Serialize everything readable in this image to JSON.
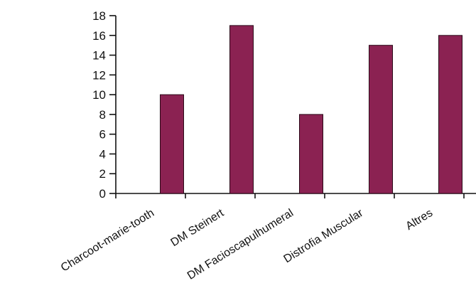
{
  "chart_data": {
    "type": "bar",
    "categories": [
      "Charcoot-marie-tooth",
      "DM Steinert",
      "DM Facioscapulhumeral",
      "Distrofia Muscular",
      "Altres"
    ],
    "values": [
      10,
      17,
      8,
      15,
      16
    ],
    "ylim": [
      0,
      18
    ],
    "yticks": [
      0,
      2,
      4,
      6,
      8,
      10,
      12,
      14,
      16,
      18
    ],
    "title": "",
    "xlabel": "",
    "ylabel": "",
    "bar_color": "#8b2252",
    "grid": false,
    "legend": "none"
  }
}
